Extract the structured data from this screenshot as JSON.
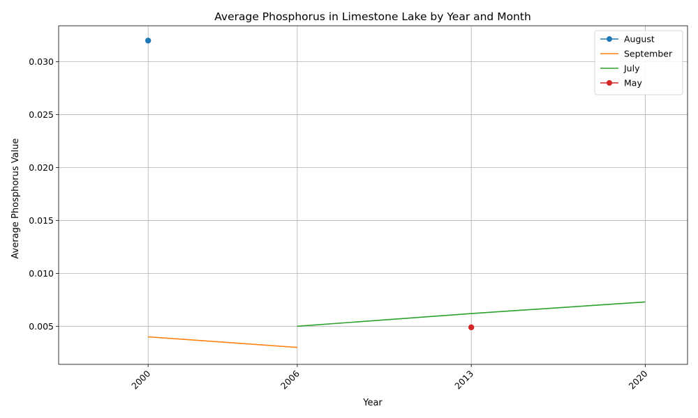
{
  "chart_data": {
    "type": "line",
    "title": "Average Phosphorus in Limestone Lake by Year and Month",
    "xlabel": "Year",
    "ylabel": "Average Phosphorus Value",
    "xlim": [
      1996.4,
      2021.7
    ],
    "ylim": [
      0.0014,
      0.0334
    ],
    "x_ticks": [
      2000,
      2006,
      2013,
      2020
    ],
    "y_ticks": [
      0.005,
      0.01,
      0.015,
      0.02,
      0.025,
      0.03
    ],
    "y_tick_labels": [
      "0.005",
      "0.010",
      "0.015",
      "0.020",
      "0.025",
      "0.030"
    ],
    "grid": true,
    "legend_position": "top-right",
    "series": [
      {
        "name": "August",
        "color": "#1f77b4",
        "marker": true,
        "points": [
          {
            "x": 2000,
            "y": 0.032
          }
        ]
      },
      {
        "name": "September",
        "color": "#ff7f0e",
        "marker": false,
        "points": [
          {
            "x": 2000,
            "y": 0.004
          },
          {
            "x": 2006,
            "y": 0.003
          }
        ]
      },
      {
        "name": "July",
        "color": "#2ca02c",
        "marker": false,
        "points": [
          {
            "x": 2006,
            "y": 0.005
          },
          {
            "x": 2013,
            "y": 0.0062
          },
          {
            "x": 2020,
            "y": 0.0073
          }
        ]
      },
      {
        "name": "May",
        "color": "#d62728",
        "marker": true,
        "points": [
          {
            "x": 2013,
            "y": 0.0049
          }
        ]
      }
    ]
  }
}
